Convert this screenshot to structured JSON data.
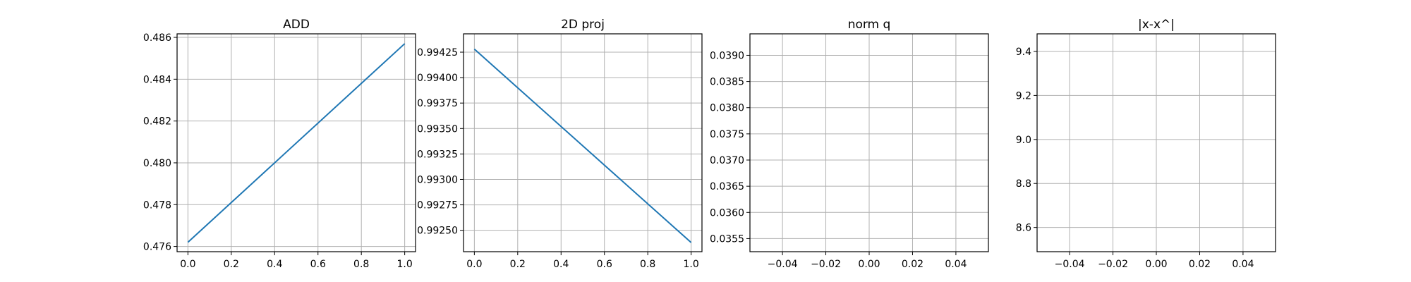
{
  "chart_data": [
    {
      "type": "line",
      "title": "ADD",
      "xlim": [
        -0.05,
        1.05
      ],
      "ylim": [
        0.47575,
        0.48617
      ],
      "xticks": [
        0.0,
        0.2,
        0.4,
        0.6,
        0.8,
        1.0
      ],
      "xticklabels": [
        "0.0",
        "0.2",
        "0.4",
        "0.6",
        "0.8",
        "1.0"
      ],
      "yticks": [
        0.476,
        0.478,
        0.48,
        0.482,
        0.484,
        0.486
      ],
      "yticklabels": [
        "0.476",
        "0.478",
        "0.480",
        "0.482",
        "0.484",
        "0.486"
      ],
      "grid": true,
      "series": [
        {
          "x": [
            0,
            1
          ],
          "y": [
            0.4762,
            0.4857
          ],
          "color": "#1f77b4"
        }
      ]
    },
    {
      "type": "line",
      "title": "2D proj",
      "xlim": [
        -0.05,
        1.05
      ],
      "ylim": [
        0.99229,
        0.99443
      ],
      "xticks": [
        0.0,
        0.2,
        0.4,
        0.6,
        0.8,
        1.0
      ],
      "xticklabels": [
        "0.0",
        "0.2",
        "0.4",
        "0.6",
        "0.8",
        "1.0"
      ],
      "yticks": [
        0.9925,
        0.99275,
        0.993,
        0.99325,
        0.9935,
        0.99375,
        0.994,
        0.99425
      ],
      "yticklabels": [
        "0.99250",
        "0.99275",
        "0.99300",
        "0.99325",
        "0.99350",
        "0.99375",
        "0.99400",
        "0.99425"
      ],
      "grid": true,
      "series": [
        {
          "x": [
            0,
            1
          ],
          "y": [
            0.99428,
            0.99238
          ],
          "color": "#1f77b4"
        }
      ]
    },
    {
      "type": "line",
      "title": "norm q",
      "xlim": [
        -0.055,
        0.055
      ],
      "ylim": [
        0.03525,
        0.03941
      ],
      "xticks": [
        -0.04,
        -0.02,
        0.0,
        0.02,
        0.04
      ],
      "xticklabels": [
        "−0.04",
        "−0.02",
        "0.00",
        "0.02",
        "0.04"
      ],
      "yticks": [
        0.0355,
        0.036,
        0.0365,
        0.037,
        0.0375,
        0.038,
        0.0385,
        0.039
      ],
      "yticklabels": [
        "0.0355",
        "0.0360",
        "0.0365",
        "0.0370",
        "0.0375",
        "0.0380",
        "0.0385",
        "0.0390"
      ],
      "grid": true,
      "series": []
    },
    {
      "type": "line",
      "title": "|x-x^|",
      "xlim": [
        -0.055,
        0.055
      ],
      "ylim": [
        8.49,
        9.48
      ],
      "xticks": [
        -0.04,
        -0.02,
        0.0,
        0.02,
        0.04
      ],
      "xticklabels": [
        "−0.04",
        "−0.02",
        "0.00",
        "0.02",
        "0.04"
      ],
      "yticks": [
        8.6,
        8.8,
        9.0,
        9.2,
        9.4
      ],
      "yticklabels": [
        "8.6",
        "8.8",
        "9.0",
        "9.2",
        "9.4"
      ],
      "grid": true,
      "series": []
    }
  ]
}
